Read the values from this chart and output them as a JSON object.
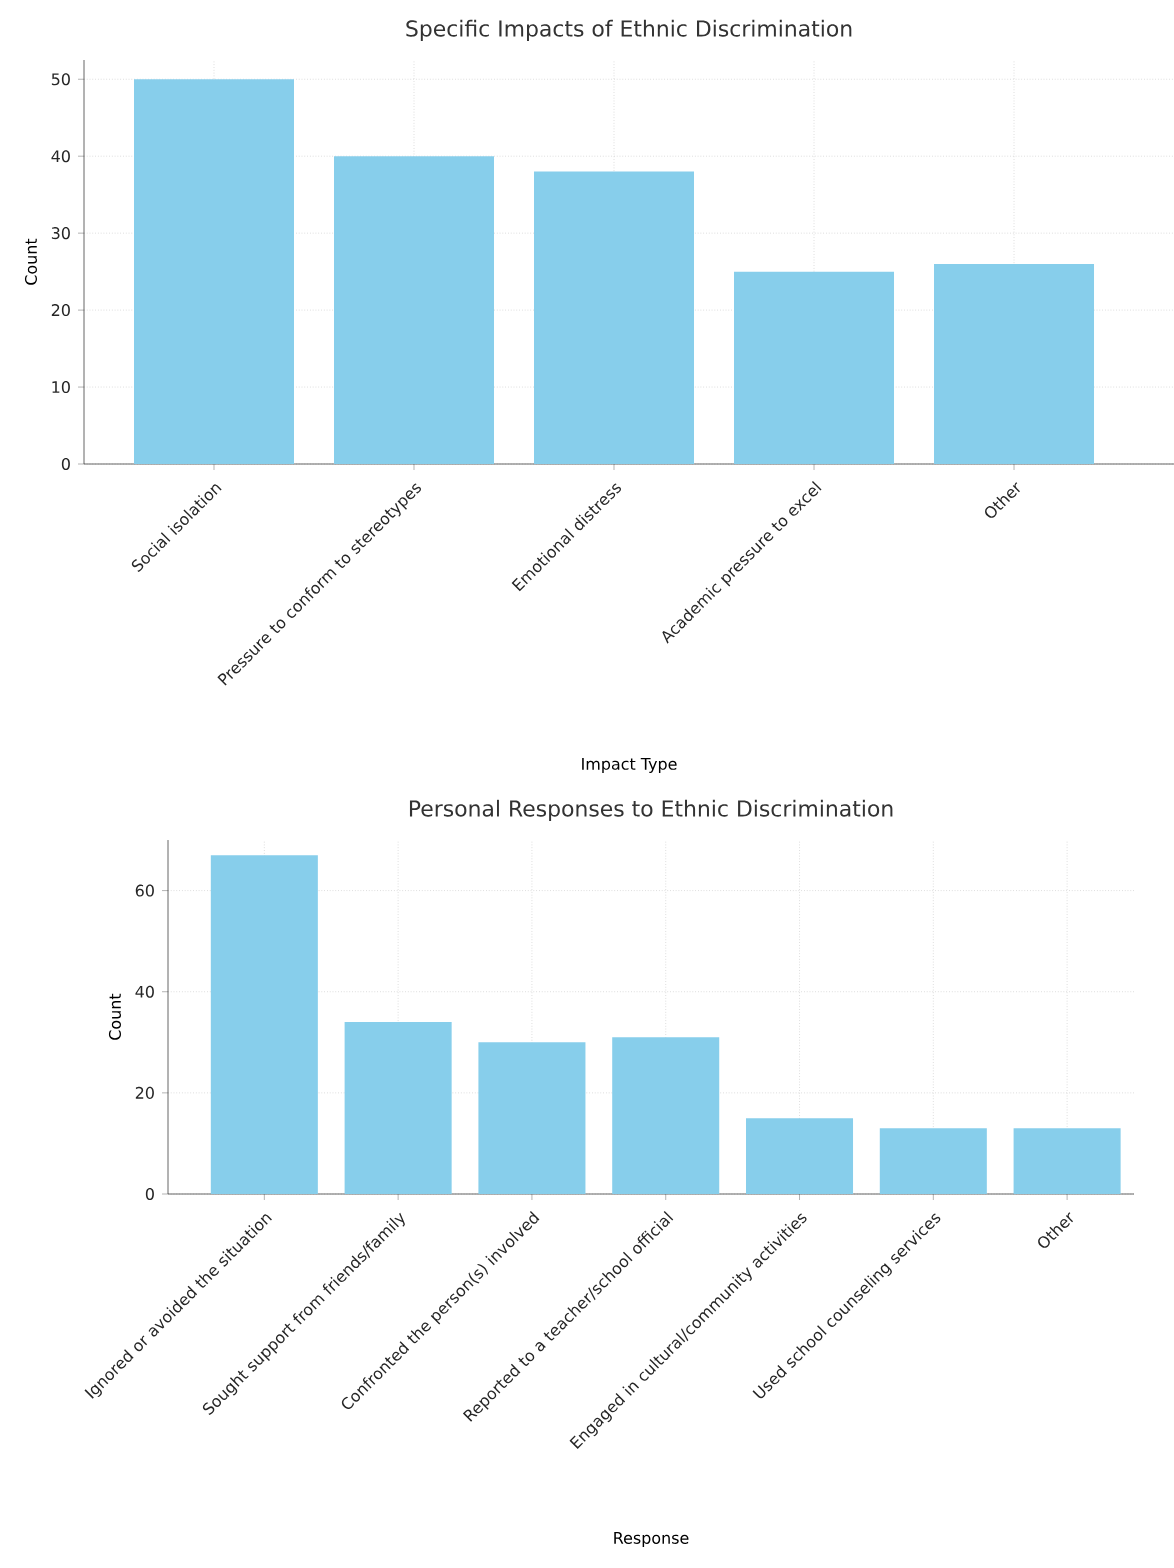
{
  "chart_data": [
    {
      "type": "bar",
      "title": "Specific Impacts of Ethnic Discrimination",
      "xlabel": "Impact Type",
      "ylabel": "Count",
      "categories": [
        "Social isolation",
        "Pressure to conform to stereotypes",
        "Emotional distress",
        "Academic pressure to excel",
        "Other"
      ],
      "values": [
        50,
        40,
        38,
        25,
        26
      ],
      "color": "#87ceeb",
      "ylim": [
        0,
        52.5
      ],
      "yticks": [
        0,
        10,
        20,
        30,
        40,
        50
      ],
      "grid": true
    },
    {
      "type": "bar",
      "title": "Personal Responses to Ethnic Discrimination",
      "xlabel": "Response",
      "ylabel": "Count",
      "categories": [
        "Ignored or avoided the situation",
        "Sought support from friends/family",
        "Confronted the person(s) involved",
        "Reported to a teacher/school official",
        "Engaged in cultural/community activities",
        "Used school counseling services",
        "Other"
      ],
      "values": [
        67,
        34,
        30,
        31,
        15,
        13,
        13
      ],
      "color": "#87ceeb",
      "ylim": [
        0,
        70
      ],
      "yticks": [
        0,
        20,
        40,
        60
      ],
      "grid": true
    }
  ]
}
